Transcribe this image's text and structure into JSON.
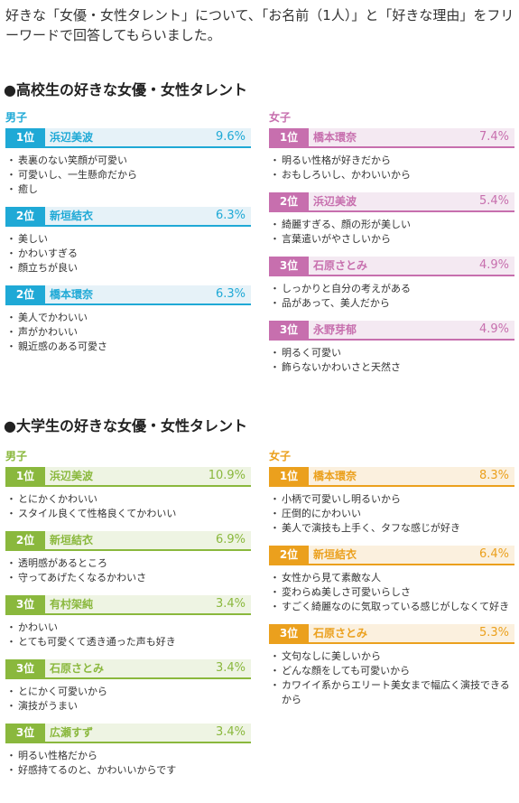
{
  "intro": "好きな「女優・女性タレント」について、「お名前（1人）」と「好きな理由」をフリーワードで回答してもらいました。",
  "sections": [
    {
      "title": "●高校生の好きな女優・女性タレント",
      "male": {
        "label": "男子",
        "entries": [
          {
            "rank": "1位",
            "name": "浜辺美波",
            "pct": "9.6%",
            "reasons": [
              "表裏のない笑顔が可愛い",
              "可愛いし、一生懸命だから",
              "癒し"
            ]
          },
          {
            "rank": "2位",
            "name": "新垣結衣",
            "pct": "6.3%",
            "reasons": [
              "美しい",
              "かわいすぎる",
              "顔立ちが良い"
            ]
          },
          {
            "rank": "2位",
            "name": "橋本環奈",
            "pct": "6.3%",
            "reasons": [
              "美人でかわいい",
              "声がかわいい",
              "親近感のある可愛さ"
            ]
          }
        ]
      },
      "female": {
        "label": "女子",
        "entries": [
          {
            "rank": "1位",
            "name": "橋本環奈",
            "pct": "7.4%",
            "reasons": [
              "明るい性格が好きだから",
              "おもしろいし、かわいいから"
            ]
          },
          {
            "rank": "2位",
            "name": "浜辺美波",
            "pct": "5.4%",
            "reasons": [
              "綺麗すぎる、顔の形が美しい",
              "言葉遣いがやさしいから"
            ]
          },
          {
            "rank": "3位",
            "name": "石原さとみ",
            "pct": "4.9%",
            "reasons": [
              "しっかりと自分の考えがある",
              "品があって、美人だから"
            ]
          },
          {
            "rank": "3位",
            "name": "永野芽郁",
            "pct": "4.9%",
            "reasons": [
              "明るく可愛い",
              "飾らないかわいさと天然さ"
            ]
          }
        ]
      }
    },
    {
      "title": "●大学生の好きな女優・女性タレント",
      "male": {
        "label": "男子",
        "entries": [
          {
            "rank": "1位",
            "name": "浜辺美波",
            "pct": "10.9%",
            "reasons": [
              "とにかくかわいい",
              "スタイル良くて性格良くてかわいい"
            ]
          },
          {
            "rank": "2位",
            "name": "新垣結衣",
            "pct": "6.9%",
            "reasons": [
              "透明感があるところ",
              "守ってあげたくなるかわいさ"
            ]
          },
          {
            "rank": "3位",
            "name": "有村架純",
            "pct": "3.4%",
            "reasons": [
              "かわいい",
              "とても可愛くて透き通った声も好き"
            ]
          },
          {
            "rank": "3位",
            "name": "石原さとみ",
            "pct": "3.4%",
            "reasons": [
              "とにかく可愛いから",
              "演技がうまい"
            ]
          },
          {
            "rank": "3位",
            "name": "広瀬すず",
            "pct": "3.4%",
            "reasons": [
              "明るい性格だから",
              "好感持てるのと、かわいいからです"
            ]
          }
        ]
      },
      "female": {
        "label": "女子",
        "entries": [
          {
            "rank": "1位",
            "name": "橋本環奈",
            "pct": "8.3%",
            "reasons": [
              "小柄で可愛いし明るいから",
              "圧倒的にかわいい",
              "美人で演技も上手く、タフな感じが好き"
            ]
          },
          {
            "rank": "2位",
            "name": "新垣結衣",
            "pct": "6.4%",
            "reasons": [
              "女性から見て素敵な人",
              "変わらぬ美しさ可愛いらしさ",
              "すごく綺麗なのに気取っている感じがしなくて好き"
            ]
          },
          {
            "rank": "3位",
            "name": "石原さとみ",
            "pct": "5.3%",
            "reasons": [
              "文句なしに美しいから",
              "どんな顔をしても可愛いから",
              "カワイイ系からエリート美女まで幅広く演技できるから"
            ]
          }
        ]
      }
    }
  ],
  "colors": {
    "hs_male": "#1fa9d6",
    "hs_female": "#c76fae",
    "univ_male": "#8ab83d",
    "univ_female": "#eba01d"
  }
}
